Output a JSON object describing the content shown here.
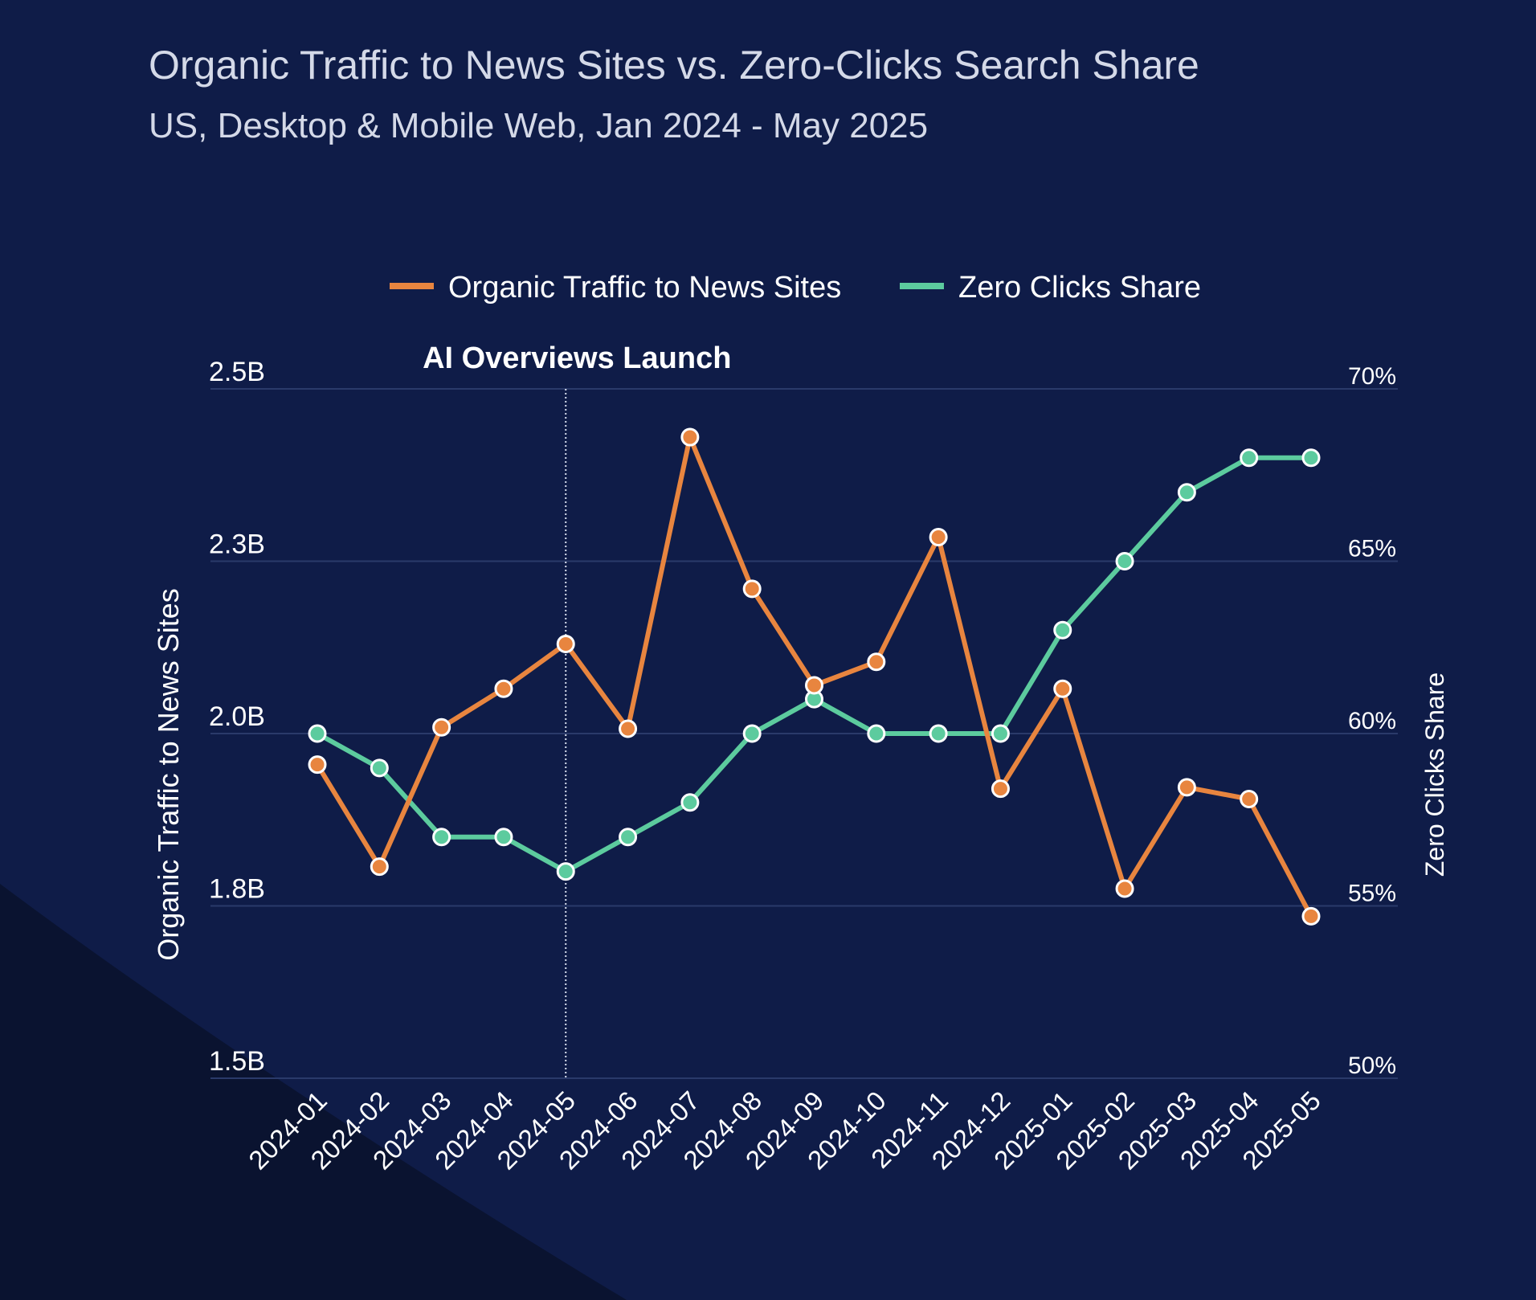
{
  "chart_data": {
    "type": "line",
    "title": "Organic Traffic to News Sites vs. Zero-Clicks Search Share",
    "subtitle": "US, Desktop & Mobile Web, Jan 2024 - May 2025",
    "categories": [
      "2024-01",
      "2024-02",
      "2024-03",
      "2024-04",
      "2024-05",
      "2024-06",
      "2024-07",
      "2024-08",
      "2024-09",
      "2024-10",
      "2024-11",
      "2024-12",
      "2025-01",
      "2025-02",
      "2025-03",
      "2025-04",
      "2025-05"
    ],
    "series": [
      {
        "name": "Organic Traffic to News Sites",
        "axis": "left",
        "color": "#e8853f",
        "values": [
          1.955,
          1.807,
          2.009,
          2.065,
          2.13,
          2.007,
          2.43,
          2.21,
          2.07,
          2.104,
          2.285,
          1.92,
          2.065,
          1.775,
          1.922,
          1.905,
          1.735
        ]
      },
      {
        "name": "Zero Clicks Share",
        "axis": "right",
        "color": "#5ccb9e",
        "values": [
          60,
          59,
          57,
          57,
          56,
          57,
          58,
          60,
          61,
          60,
          60,
          60,
          63,
          65,
          67,
          68,
          68
        ]
      }
    ],
    "ylabel": "Organic Traffic to News Sites",
    "y2label": "Zero Clicks Share",
    "yticks": [
      {
        "value": 1.5,
        "label": "1.5B"
      },
      {
        "value": 1.75,
        "label": "1.8B"
      },
      {
        "value": 2.0,
        "label": "2.0B"
      },
      {
        "value": 2.25,
        "label": "2.3B"
      },
      {
        "value": 2.5,
        "label": "2.5B"
      }
    ],
    "y2ticks": [
      {
        "value": 50,
        "label": "50%"
      },
      {
        "value": 55,
        "label": "55%"
      },
      {
        "value": 60,
        "label": "60%"
      },
      {
        "value": 65,
        "label": "65%"
      },
      {
        "value": 70,
        "label": "70%"
      }
    ],
    "ylim": [
      1.5,
      2.5
    ],
    "y2lim": [
      50,
      70
    ],
    "grid": true,
    "legend_position": "top-center",
    "annotation": {
      "label": "AI Overviews Launch",
      "at_category": "2024-05"
    }
  }
}
